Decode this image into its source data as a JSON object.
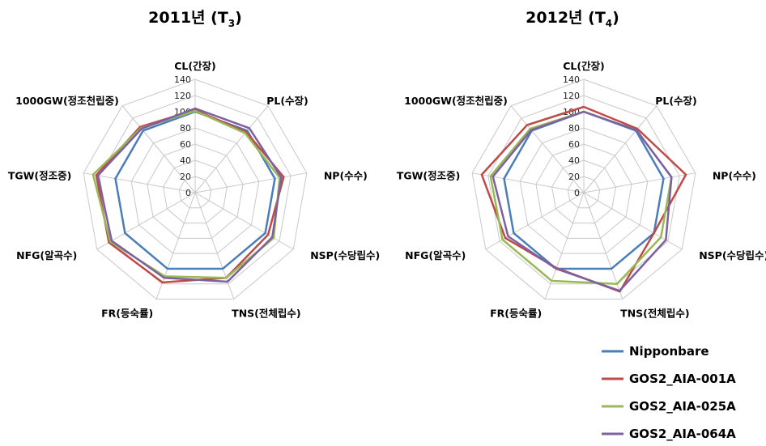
{
  "chart_data": [
    {
      "type": "radar",
      "title_main": "2011년 (T",
      "title_sub": "3",
      "title_end": ")",
      "axes": [
        "CL(간장)",
        "PL(수장)",
        "NP(수수)",
        "NSP(수당립수)",
        "TNS(전체립수)",
        "FR(등숙률)",
        "NFG(알곡수)",
        "TGW(정조중)",
        "1000GW(정조천립중)"
      ],
      "ticks": [
        "0",
        "20",
        "40",
        "60",
        "80",
        "100",
        "120",
        "140"
      ],
      "rlim": [
        0,
        140
      ],
      "series": [
        {
          "name": "Nipponbare",
          "values": [
            100,
            100,
            100,
            100,
            100,
            100,
            100,
            100,
            100
          ]
        },
        {
          "name": "GOS2_AIA-001A",
          "values": [
            102,
            98,
            111,
            104,
            112,
            118,
            123,
            124,
            106
          ]
        },
        {
          "name": "GOS2_AIA-025A",
          "values": [
            101,
            96,
            106,
            112,
            112,
            110,
            121,
            128,
            104
          ]
        },
        {
          "name": "GOS2_AIA-064A",
          "values": [
            104,
            104,
            108,
            110,
            117,
            112,
            119,
            122,
            103
          ]
        }
      ]
    },
    {
      "type": "radar",
      "title_main": "2012년 (T",
      "title_sub": "4",
      "title_end": ")",
      "axes": [
        "CL(간장)",
        "PL(수장)",
        "NP(수수)",
        "NSP(수당립수)",
        "TNS(전체립수)",
        "FR(등숙률)",
        "NFG(알곡수)",
        "TGW(정조중)",
        "1000GW(정조천립중)"
      ],
      "ticks": [
        "0",
        "20",
        "40",
        "60",
        "80",
        "100",
        "120",
        "140"
      ],
      "rlim": [
        0,
        140
      ],
      "series": [
        {
          "name": "Nipponbare",
          "values": [
            100,
            100,
            100,
            100,
            100,
            100,
            100,
            100,
            100
          ]
        },
        {
          "name": "GOS2_AIA-001A",
          "values": [
            106,
            103,
            128,
            100,
            130,
            99,
            112,
            128,
            109
          ]
        },
        {
          "name": "GOS2_AIA-025A",
          "values": [
            100,
            101,
            110,
            110,
            120,
            116,
            116,
            117,
            103
          ]
        },
        {
          "name": "GOS2_AIA-064A",
          "values": [
            100,
            101,
            110,
            117,
            129,
            100,
            108,
            114,
            101
          ]
        }
      ]
    }
  ],
  "colors": [
    "#4a7ebb",
    "#be4b48",
    "#98b954",
    "#7d60a0"
  ],
  "legend": {
    "items": [
      "Nipponbare",
      "GOS2_AIA-001A",
      "GOS2_AIA-025A",
      "GOS2_AIA-064A"
    ],
    "placement": "bottom-right"
  }
}
